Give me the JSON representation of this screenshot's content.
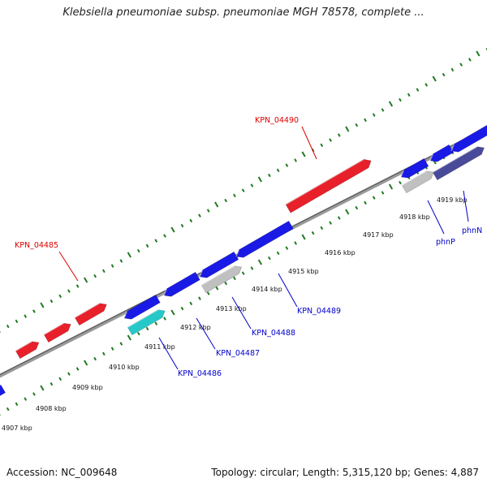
{
  "title": "Klebsiella pneumoniae subsp. pneumoniae MGH 78578, complete ...",
  "footer": {
    "accession": "Accession: NC_009648",
    "summary": "Topology: circular; Length: 5,315,120 bp; Genes: 4,887"
  },
  "colors": {
    "forward_gene": "#e8202a",
    "reverse_gene": "#1a1ae6",
    "gray_gene": "#c0c0c0",
    "cyan_gene": "#26c8c8",
    "dark_gene": "#4a4a9a",
    "backbone": "#7a7a7a",
    "tick": "#207a20",
    "red_label": "#dd0000",
    "blue_label": "#0000cc"
  },
  "scale": {
    "unit": "kbp",
    "labels": [
      "4907 kbp",
      "4908 kbp",
      "4909 kbp",
      "4910 kbp",
      "4911 kbp",
      "4912 kbp",
      "4913 kbp",
      "4914 kbp",
      "4915 kbp",
      "4916 kbp",
      "4917 kbp",
      "4918 kbp",
      "4919 kbp"
    ]
  },
  "labels": {
    "KPN_04490": "KPN_04490",
    "KPN_04485": "KPN_04485",
    "KPN_04486": "KPN_04486",
    "KPN_04487": "KPN_04487",
    "KPN_04488": "KPN_04488",
    "KPN_04489": "KPN_04489",
    "phnP": "phnP",
    "phnN": "phnN"
  }
}
